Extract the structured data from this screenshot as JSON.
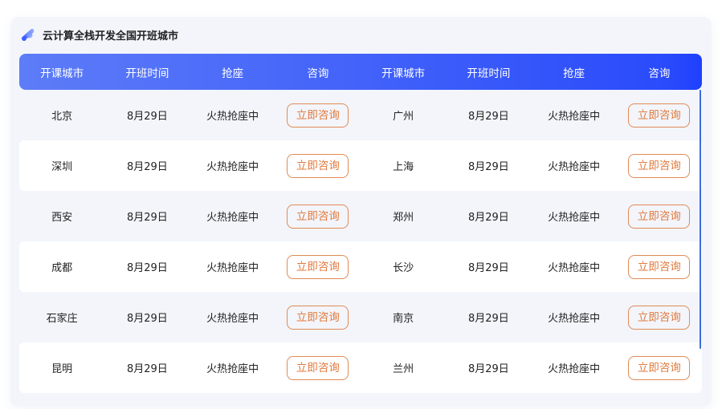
{
  "title": "云计算全栈开发全国开班城市",
  "colors": {
    "header_start": "#5d7cf8",
    "header_end": "#1f40ff",
    "button": "#e07a3e"
  },
  "headers": [
    "开课城市",
    "开班时间",
    "抢座",
    "咨询",
    "开课城市",
    "开班时间",
    "抢座",
    "咨询"
  ],
  "rows": [
    {
      "left": {
        "city": "北京",
        "date": "8月29日",
        "status": "火热抢座中",
        "action": "立即咨询"
      },
      "right": {
        "city": "广州",
        "date": "8月29日",
        "status": "火热抢座中",
        "action": "立即咨询"
      }
    },
    {
      "left": {
        "city": "深圳",
        "date": "8月29日",
        "status": "火热抢座中",
        "action": "立即咨询"
      },
      "right": {
        "city": "上海",
        "date": "8月29日",
        "status": "火热抢座中",
        "action": "立即咨询"
      }
    },
    {
      "left": {
        "city": "西安",
        "date": "8月29日",
        "status": "火热抢座中",
        "action": "立即咨询"
      },
      "right": {
        "city": "郑州",
        "date": "8月29日",
        "status": "火热抢座中",
        "action": "立即咨询"
      }
    },
    {
      "left": {
        "city": "成都",
        "date": "8月29日",
        "status": "火热抢座中",
        "action": "立即咨询"
      },
      "right": {
        "city": "长沙",
        "date": "8月29日",
        "status": "火热抢座中",
        "action": "立即咨询"
      }
    },
    {
      "left": {
        "city": "石家庄",
        "date": "8月29日",
        "status": "火热抢座中",
        "action": "立即咨询"
      },
      "right": {
        "city": "南京",
        "date": "8月29日",
        "status": "火热抢座中",
        "action": "立即咨询"
      }
    },
    {
      "left": {
        "city": "昆明",
        "date": "8月29日",
        "status": "火热抢座中",
        "action": "立即咨询"
      },
      "right": {
        "city": "兰州",
        "date": "8月29日",
        "status": "火热抢座中",
        "action": "立即咨询"
      }
    }
  ]
}
